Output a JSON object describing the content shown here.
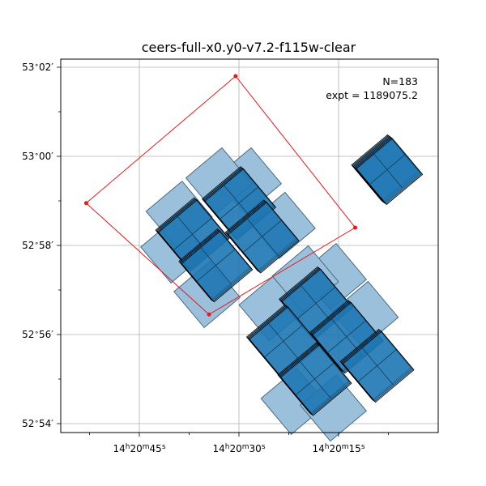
{
  "chart_data": {
    "type": "scatter",
    "title": "ceers-full-x0.y0-v7.2-f115w-clear",
    "xlabel": "",
    "ylabel": "",
    "x_unit": "RA (hours)",
    "y_unit": "Dec (degrees)",
    "xlim": [
      "14h20m56.5s",
      "14h20m03.6s"
    ],
    "ylim": [
      "52°53.8'",
      "53°02.3'"
    ],
    "x_axis_inverted": true,
    "grid": true,
    "x_ticks": [
      {
        "value_seconds": 45,
        "h": "14",
        "m": "20",
        "s": "45"
      },
      {
        "value_seconds": 30,
        "h": "14",
        "m": "20",
        "s": "30"
      },
      {
        "value_seconds": 15,
        "h": "14",
        "m": "20",
        "s": "15"
      }
    ],
    "x_minor_ticks_seconds": [
      52.5,
      37.5,
      22.5,
      7.5
    ],
    "y_ticks": [
      {
        "value_arcmin": 182,
        "deg": "53",
        "min": "02"
      },
      {
        "value_arcmin": 180,
        "deg": "53",
        "min": "00"
      },
      {
        "value_arcmin": 178,
        "deg": "52",
        "min": "58"
      },
      {
        "value_arcmin": 176,
        "deg": "52",
        "min": "56"
      },
      {
        "value_arcmin": 174,
        "deg": "52",
        "min": "54"
      }
    ],
    "y_minor_ticks_arcmin": [
      181,
      179,
      177,
      175
    ],
    "annotations": [
      "N=183",
      "expt = 1189075.2"
    ],
    "red_outline": {
      "color": "#e41a1c",
      "points_ra_s_dec_arcmin": [
        [
          34.5,
          176.45
        ],
        [
          12.5,
          178.4
        ],
        [
          30.5,
          181.8
        ],
        [
          53.0,
          178.95
        ]
      ]
    },
    "footprint_colors": {
      "fill": "#1f77b4",
      "edge": "#000000",
      "light_fill": "#9ac0db"
    },
    "tile_groups": [
      {
        "id": "isolated-pointing",
        "center_ra_s": 7.7,
        "center_dec_arcmin": 179.7,
        "layers": 6,
        "light": false
      },
      {
        "id": "upper-mosaic-west",
        "center_ra_s": 37.0,
        "center_dec_arcmin": 178.25,
        "layers": 4,
        "light": false
      },
      {
        "id": "upper-mosaic-mid",
        "center_ra_s": 30.0,
        "center_dec_arcmin": 178.95,
        "layers": 4,
        "light": false
      },
      {
        "id": "upper-mosaic-south",
        "center_ra_s": 33.5,
        "center_dec_arcmin": 177.55,
        "layers": 4,
        "light": false
      },
      {
        "id": "upper-mosaic-east",
        "center_ra_s": 26.5,
        "center_dec_arcmin": 178.2,
        "layers": 4,
        "light": false
      },
      {
        "id": "lower-mosaic-north",
        "center_ra_s": 18.4,
        "center_dec_arcmin": 176.7,
        "layers": 4,
        "light": false
      },
      {
        "id": "lower-mosaic-west",
        "center_ra_s": 23.3,
        "center_dec_arcmin": 175.85,
        "layers": 4,
        "light": false
      },
      {
        "id": "lower-mosaic-east",
        "center_ra_s": 13.8,
        "center_dec_arcmin": 175.95,
        "layers": 4,
        "light": false
      },
      {
        "id": "lower-mosaic-south",
        "center_ra_s": 18.6,
        "center_dec_arcmin": 175.0,
        "layers": 4,
        "light": false
      },
      {
        "id": "lower-mosaic-far-east",
        "center_ra_s": 9.2,
        "center_dec_arcmin": 175.3,
        "layers": 4,
        "light": false
      },
      {
        "id": "light-upper-ne-1",
        "center_ra_s": 28.6,
        "center_dec_arcmin": 179.45,
        "layers": 1,
        "light": true
      },
      {
        "id": "light-upper-ne-2",
        "center_ra_s": 23.5,
        "center_dec_arcmin": 178.45,
        "layers": 1,
        "light": true
      },
      {
        "id": "light-upper-sw-1",
        "center_ra_s": 39.8,
        "center_dec_arcmin": 177.9,
        "layers": 1,
        "light": true
      },
      {
        "id": "light-upper-sw-2",
        "center_ra_s": 34.8,
        "center_dec_arcmin": 176.9,
        "layers": 1,
        "light": true
      },
      {
        "id": "light-upper-nw-1",
        "center_ra_s": 39.0,
        "center_dec_arcmin": 178.7,
        "layers": 1,
        "light": true
      },
      {
        "id": "light-upper-nw-2",
        "center_ra_s": 33.0,
        "center_dec_arcmin": 179.45,
        "layers": 1,
        "light": true
      },
      {
        "id": "light-lower-ne-1",
        "center_ra_s": 15.8,
        "center_dec_arcmin": 177.3,
        "layers": 1,
        "light": true
      },
      {
        "id": "light-lower-ne-2",
        "center_ra_s": 11.0,
        "center_dec_arcmin": 176.45,
        "layers": 1,
        "light": true
      },
      {
        "id": "light-lower-nw-1",
        "center_ra_s": 25.0,
        "center_dec_arcmin": 176.6,
        "layers": 1,
        "light": true
      },
      {
        "id": "light-lower-nw-2",
        "center_ra_s": 20.0,
        "center_dec_arcmin": 177.25,
        "layers": 1,
        "light": true
      },
      {
        "id": "light-lower-sw-1",
        "center_ra_s": 21.7,
        "center_dec_arcmin": 174.5,
        "layers": 1,
        "light": true
      },
      {
        "id": "light-lower-sw-2",
        "center_ra_s": 15.8,
        "center_dec_arcmin": 174.35,
        "layers": 1,
        "light": true
      }
    ]
  }
}
